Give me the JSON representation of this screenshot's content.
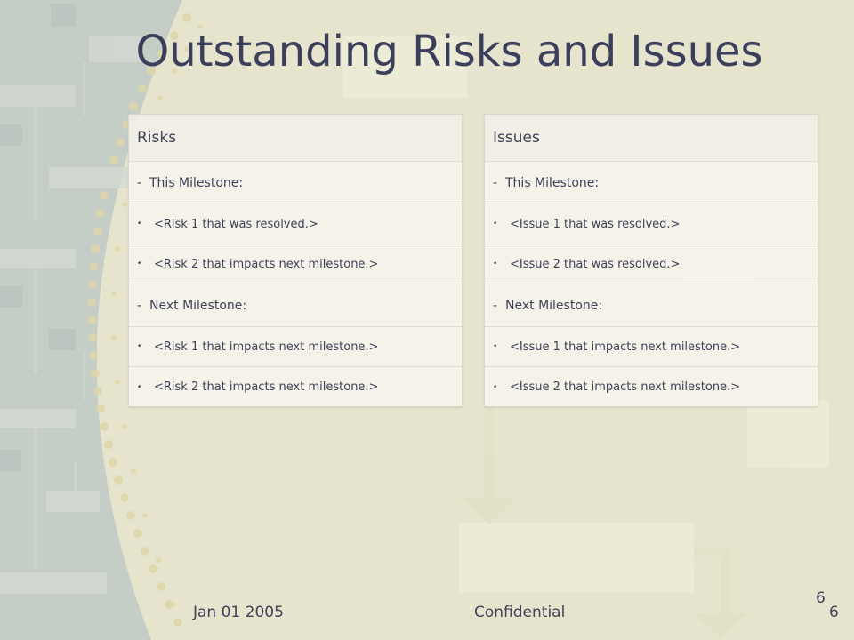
{
  "slide": {
    "title": "Outstanding Risks and Issues",
    "footer_date": "Jan 01 2005",
    "footer_center": "Confidential",
    "page_number_upper": "6",
    "page_number_lower": "6"
  },
  "risks": {
    "header": "Risks",
    "this_milestone": "This Milestone:",
    "this_items": [
      "<Risk 1 that was resolved.>",
      "<Risk 2 that impacts next milestone.>"
    ],
    "next_milestone": "Next Milestone:",
    "next_items": [
      "<Risk 1 that impacts next milestone.>",
      "<Risk 2 that impacts next milestone.>"
    ]
  },
  "issues": {
    "header": "Issues",
    "this_milestone": "This Milestone:",
    "this_items": [
      "<Issue 1 that was resolved.>",
      "<Issue 2 that was resolved.>"
    ],
    "next_milestone": "Next Milestone:",
    "next_items": [
      "<Issue 1 that impacts next milestone.>",
      "<Issue 2 that impacts next milestone.>"
    ]
  },
  "markers": {
    "dash": "-",
    "bullet": "•"
  },
  "colors": {
    "title": "#3c3f5c",
    "text": "#3f4258",
    "background": "#e7e5cf",
    "panel": "#f3f1ea"
  }
}
